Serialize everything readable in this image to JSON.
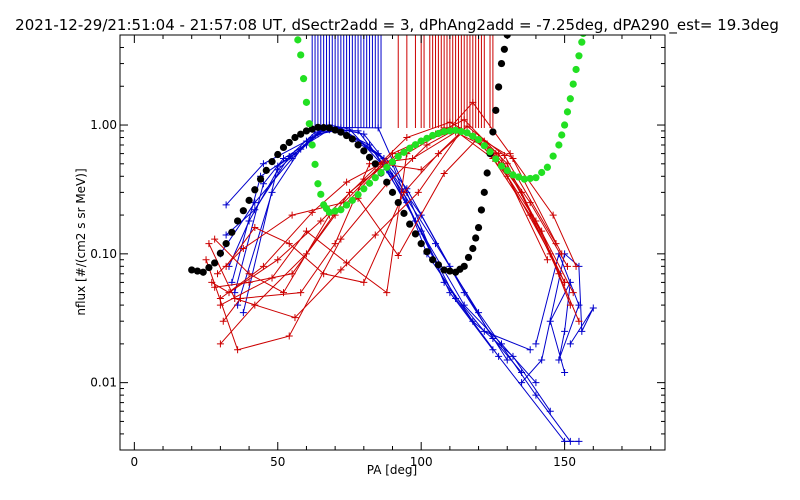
{
  "chart_data": {
    "type": "scatter",
    "title": "2021-12-29/21:51:04 - 21:57:08 UT, dSectr2add = 3, dPhAng2add = -7.25deg, dPA290_est=  19.3deg",
    "xlabel": "PA [deg]",
    "ylabel": "nflux [#/(cm2 s sr MeV)]",
    "xlim": [
      -5,
      185
    ],
    "ylim": [
      0.003,
      5
    ],
    "yscale": "log",
    "grid": false,
    "x_ticks": [
      0,
      50,
      100,
      150
    ],
    "x_tick_labels": [
      "0",
      "50",
      "100",
      "150"
    ],
    "y_ticks": [
      0.01,
      0.1,
      1
    ],
    "y_tick_labels": [
      "0.01",
      "0.10",
      "1.00"
    ],
    "colors": {
      "blue": "#0000cc",
      "red": "#cc0000",
      "black": "#000000",
      "green": "#22e022"
    },
    "series": [
      {
        "color": "blue",
        "style": "vertical-lines",
        "x": [
          62,
          63,
          64,
          65,
          66,
          67,
          68,
          69,
          70,
          71,
          72,
          73,
          74,
          75,
          76,
          77,
          78,
          79,
          80,
          81,
          82,
          83,
          84,
          85,
          86
        ]
      },
      {
        "color": "red",
        "style": "vertical-lines",
        "x": [
          92,
          95,
          98,
          100,
          101,
          103,
          104,
          105,
          106,
          107,
          108,
          109,
          110,
          111,
          112,
          113,
          114,
          115,
          116,
          117,
          118,
          119,
          120,
          121,
          122,
          124,
          125
        ]
      },
      {
        "color": "blue",
        "style": "line-plus",
        "lines": [
          [
            [
              32,
              0.24
            ],
            [
              45,
              0.5
            ],
            [
              60,
              0.75
            ],
            [
              67,
              0.98
            ],
            [
              80,
              0.85
            ],
            [
              95,
              0.32
            ],
            [
              110,
              0.08
            ],
            [
              125,
              0.022
            ],
            [
              135,
              0.012
            ]
          ],
          [
            [
              30,
              0.1
            ],
            [
              42,
              0.25
            ],
            [
              55,
              0.55
            ],
            [
              65,
              0.9
            ],
            [
              72,
              0.95
            ],
            [
              85,
              0.6
            ],
            [
              100,
              0.2
            ],
            [
              115,
              0.05
            ],
            [
              130,
              0.015
            ]
          ],
          [
            [
              35,
              0.05
            ],
            [
              45,
              0.35
            ],
            [
              52,
              0.55
            ],
            [
              68,
              0.92
            ],
            [
              78,
              0.9
            ],
            [
              90,
              0.4
            ],
            [
              105,
              0.12
            ],
            [
              120,
              0.035
            ],
            [
              140,
              0.008
            ],
            [
              152,
              0.0035
            ]
          ],
          [
            [
              33,
              0.08
            ],
            [
              40,
              0.18
            ],
            [
              50,
              0.45
            ],
            [
              62,
              0.8
            ],
            [
              70,
              0.95
            ],
            [
              82,
              0.7
            ],
            [
              95,
              0.25
            ],
            [
              110,
              0.05
            ],
            [
              125,
              0.018
            ]
          ],
          [
            [
              36,
              0.04
            ],
            [
              48,
              0.3
            ],
            [
              58,
              0.65
            ],
            [
              68,
              1.0
            ],
            [
              75,
              0.93
            ],
            [
              88,
              0.45
            ],
            [
              100,
              0.15
            ],
            [
              115,
              0.04
            ],
            [
              128,
              0.02
            ],
            [
              140,
              0.01
            ]
          ],
          [
            [
              34,
              0.06
            ],
            [
              44,
              0.4
            ],
            [
              56,
              0.6
            ],
            [
              64,
              0.85
            ],
            [
              72,
              0.92
            ],
            [
              90,
              0.5
            ],
            [
              102,
              0.1
            ],
            [
              118,
              0.03
            ],
            [
              132,
              0.016
            ],
            [
              145,
              0.006
            ]
          ],
          [
            [
              38,
              0.035
            ],
            [
              50,
              0.48
            ],
            [
              60,
              0.7
            ],
            [
              66,
              0.96
            ],
            [
              85,
              0.95
            ],
            [
              95,
              0.3
            ],
            [
              108,
              0.06
            ],
            [
              122,
              0.025
            ],
            [
              138,
              0.018
            ]
          ],
          [
            [
              32,
              0.14
            ],
            [
              42,
              0.22
            ],
            [
              54,
              0.57
            ],
            [
              63,
              0.88
            ],
            [
              71,
              0.9
            ],
            [
              87,
              0.55
            ],
            [
              98,
              0.18
            ],
            [
              112,
              0.045
            ],
            [
              127,
              0.016
            ],
            [
              150,
              0.0035
            ],
            [
              155,
              0.0035
            ]
          ],
          [
            [
              140,
              0.02
            ],
            [
              148,
              0.1
            ],
            [
              155,
              0.04
            ],
            [
              148,
              0.015
            ],
            [
              150,
              0.025
            ],
            [
              152,
              0.06
            ],
            [
              145,
              0.03
            ],
            [
              150,
              0.012
            ]
          ],
          [
            [
              135,
              0.01
            ],
            [
              142,
              0.015
            ],
            [
              150,
              0.1
            ],
            [
              155,
              0.08
            ],
            [
              156,
              0.025
            ],
            [
              160,
              0.038
            ],
            [
              152,
              0.02
            ]
          ]
        ]
      },
      {
        "color": "red",
        "style": "line-plus",
        "lines": [
          [
            [
              28,
              0.055
            ],
            [
              40,
              0.06
            ],
            [
              55,
              0.07
            ],
            [
              70,
              0.2
            ],
            [
              85,
              0.45
            ],
            [
              100,
              0.75
            ],
            [
              112,
              0.9
            ],
            [
              125,
              0.55
            ],
            [
              138,
              0.2
            ],
            [
              150,
              0.06
            ]
          ],
          [
            [
              30,
              0.02
            ],
            [
              42,
              0.04
            ],
            [
              60,
              0.1
            ],
            [
              75,
              0.3
            ],
            [
              92,
              0.6
            ],
            [
              108,
              0.95
            ],
            [
              118,
              0.85
            ],
            [
              130,
              0.4
            ],
            [
              145,
              0.1
            ],
            [
              155,
              0.03
            ]
          ],
          [
            [
              25,
              0.09
            ],
            [
              36,
              0.018
            ],
            [
              54,
              0.023
            ],
            [
              72,
              0.13
            ],
            [
              88,
              0.35
            ],
            [
              102,
              0.7
            ],
            [
              113,
              0.95
            ],
            [
              127,
              0.6
            ],
            [
              142,
              0.15
            ],
            [
              152,
              0.04
            ]
          ],
          [
            [
              29,
              0.07
            ],
            [
              38,
              0.11
            ],
            [
              55,
              0.2
            ],
            [
              73,
              0.25
            ],
            [
              90,
              0.6
            ],
            [
              105,
              0.85
            ],
            [
              115,
              1.1
            ],
            [
              130,
              0.5
            ],
            [
              148,
              0.07
            ]
          ],
          [
            [
              27,
              0.06
            ],
            [
              33,
              0.05
            ],
            [
              50,
              0.09
            ],
            [
              65,
              0.18
            ],
            [
              80,
              0.38
            ],
            [
              95,
              0.8
            ],
            [
              110,
              1.05
            ],
            [
              122,
              0.75
            ],
            [
              135,
              0.3
            ],
            [
              150,
              0.06
            ]
          ],
          [
            [
              31,
              0.03
            ],
            [
              37,
              0.045
            ],
            [
              58,
              0.05
            ],
            [
              70,
              0.12
            ],
            [
              82,
              0.5
            ],
            [
              97,
              0.55
            ],
            [
              112,
              0.88
            ],
            [
              124,
              0.65
            ],
            [
              140,
              0.18
            ],
            [
              153,
              0.05
            ]
          ],
          [
            [
              30,
              0.045
            ],
            [
              45,
              0.08
            ],
            [
              62,
              0.21
            ],
            [
              74,
              0.36
            ],
            [
              86,
              0.5
            ],
            [
              100,
              0.45
            ],
            [
              115,
              0.9
            ],
            [
              128,
              0.5
            ],
            [
              144,
              0.09
            ]
          ],
          [
            [
              28,
              0.13
            ],
            [
              40,
              0.07
            ],
            [
              52,
              0.05
            ],
            [
              68,
              0.2
            ],
            [
              78,
              0.27
            ],
            [
              92,
              0.097
            ],
            [
              108,
              0.42
            ],
            [
              120,
              0.8
            ],
            [
              132,
              0.55
            ],
            [
              146,
              0.2
            ],
            [
              154,
              0.08
            ]
          ],
          [
            [
              26,
              0.12
            ],
            [
              35,
              0.045
            ],
            [
              56,
              0.032
            ],
            [
              72,
              0.075
            ],
            [
              84,
              0.14
            ],
            [
              99,
              0.3
            ],
            [
              114,
              0.9
            ],
            [
              126,
              0.6
            ],
            [
              138,
              0.25
            ],
            [
              151,
              0.08
            ]
          ],
          [
            [
              30,
              0.04
            ],
            [
              48,
              0.065
            ],
            [
              60,
              0.15
            ],
            [
              74,
              0.085
            ],
            [
              88,
              0.05
            ],
            [
              95,
              0.6
            ],
            [
              110,
              0.95
            ],
            [
              118,
              1.5
            ],
            [
              131,
              0.6
            ],
            [
              149,
              0.1
            ]
          ],
          [
            [
              32,
              0.08
            ],
            [
              42,
              0.16
            ],
            [
              54,
              0.12
            ],
            [
              66,
              0.07
            ],
            [
              80,
              0.06
            ],
            [
              94,
              0.3
            ],
            [
              106,
              0.6
            ],
            [
              116,
              0.98
            ],
            [
              129,
              0.58
            ],
            [
              147,
              0.12
            ]
          ]
        ]
      },
      {
        "color": "black",
        "style": "thick-dotted",
        "x": [
          20,
          24,
          28,
          32,
          36,
          40,
          44,
          48,
          52,
          56,
          60,
          64,
          68,
          72,
          76,
          80,
          84,
          88,
          92,
          96,
          100,
          104,
          108,
          112,
          115,
          118,
          120,
          122,
          124,
          126,
          128,
          130,
          131
        ],
        "y": [
          0.075,
          0.072,
          0.085,
          0.12,
          0.18,
          0.26,
          0.38,
          0.52,
          0.67,
          0.8,
          0.9,
          0.96,
          0.95,
          0.88,
          0.78,
          0.63,
          0.5,
          0.36,
          0.25,
          0.17,
          0.12,
          0.09,
          0.075,
          0.072,
          0.08,
          0.11,
          0.16,
          0.3,
          0.6,
          1.3,
          3.0,
          5.0,
          6.0
        ]
      },
      {
        "color": "green",
        "style": "thick-dotted",
        "x": [
          56,
          58,
          60,
          62,
          64,
          66,
          68,
          72,
          76,
          80,
          84,
          88,
          92,
          96,
          100,
          104,
          108,
          112,
          116,
          120,
          124,
          128,
          132,
          136,
          140,
          144,
          148,
          150,
          152,
          154,
          156,
          157
        ],
        "y": [
          6.0,
          3.5,
          1.5,
          0.7,
          0.35,
          0.24,
          0.21,
          0.22,
          0.26,
          0.32,
          0.39,
          0.47,
          0.57,
          0.66,
          0.75,
          0.83,
          0.89,
          0.91,
          0.87,
          0.77,
          0.62,
          0.48,
          0.41,
          0.38,
          0.39,
          0.47,
          0.7,
          1.0,
          1.6,
          2.7,
          4.4,
          6.0
        ]
      }
    ]
  }
}
